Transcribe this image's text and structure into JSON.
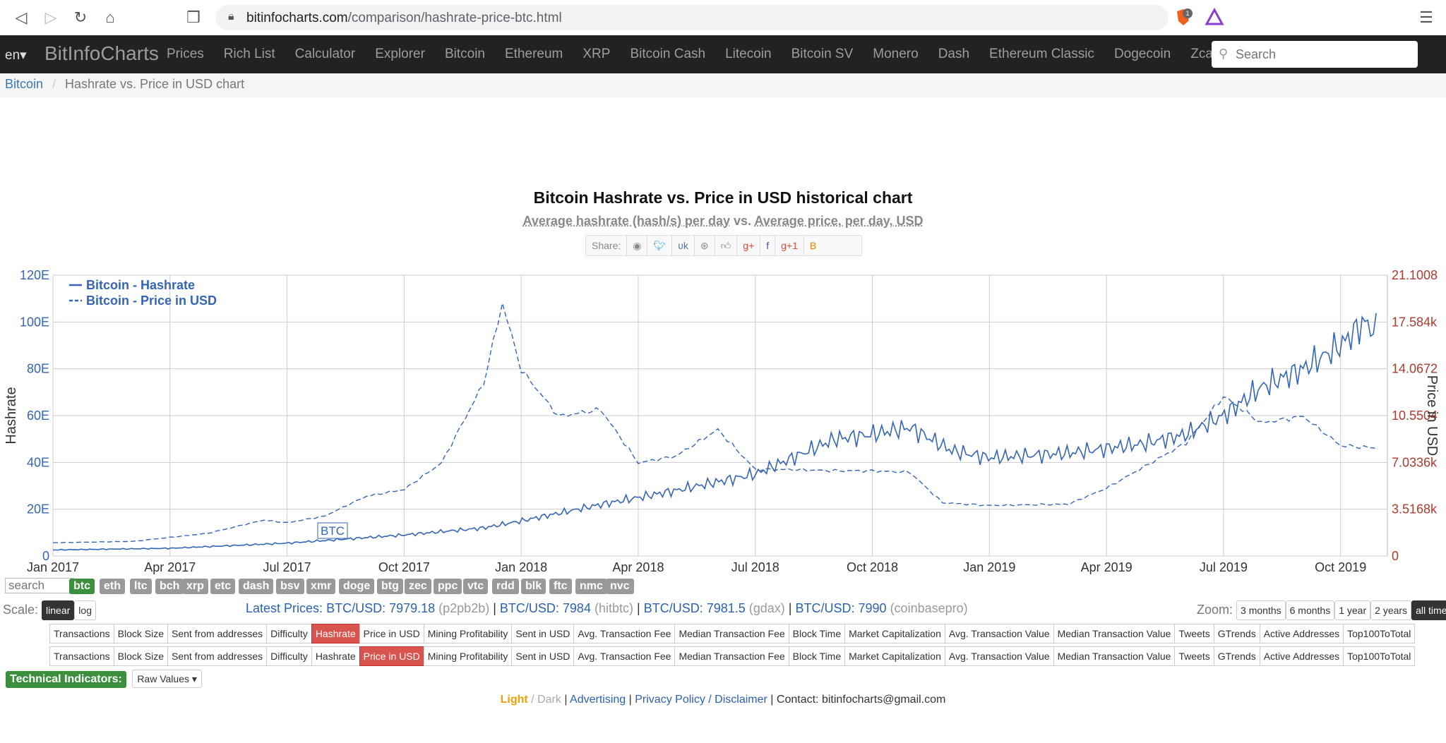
{
  "browser": {
    "url_host": "bitinfocharts.com",
    "url_path": "/comparison/hashrate-price-btc.html",
    "ext_badge": "1"
  },
  "nav": {
    "lang": "en",
    "brand": "BitInfoCharts",
    "links": [
      "Prices",
      "Rich List",
      "Calculator",
      "Explorer",
      "Bitcoin",
      "Ethereum",
      "XRP",
      "Bitcoin Cash",
      "Litecoin",
      "Bitcoin SV",
      "Monero",
      "Dash",
      "Ethereum Classic",
      "Dogecoin",
      "Zcash"
    ],
    "search_placeholder": "Search"
  },
  "breadcrumb": {
    "link": "Bitcoin",
    "separator": "/",
    "current": "Hashrate vs. Price in USD chart"
  },
  "header": {
    "title": "Bitcoin Hashrate vs. Price in USD historical chart",
    "sub_left": "Average hashrate (hash/s) per day",
    "sub_vs": "vs.",
    "sub_right": "Average price, per day, USD",
    "share_label": "Share:"
  },
  "chart_data": {
    "type": "line",
    "title": "Bitcoin Hashrate vs. Price in USD historical chart",
    "x_ticks": [
      "Jan 2017",
      "Apr 2017",
      "Jul 2017",
      "Oct 2017",
      "Jan 2018",
      "Apr 2018",
      "Jul 2018",
      "Oct 2018",
      "Jan 2019",
      "Apr 2019",
      "Jul 2019",
      "Oct 2019"
    ],
    "x_range": [
      2017.0,
      2019.85
    ],
    "ylabel": "Hashrate",
    "y2label": "Price in USD",
    "y_ticks": [
      "0",
      "20E",
      "40E",
      "60E",
      "80E",
      "100E",
      "120E"
    ],
    "y_range": [
      0,
      120
    ],
    "y2_ticks": [
      "0",
      "3.5168k",
      "7.0336k",
      "10.5504",
      "14.0672",
      "17.584k",
      "21.1008"
    ],
    "y2_range": [
      0,
      21100.8
    ],
    "legend": [
      "Bitcoin - Hashrate",
      "Bitcoin - Price in USD"
    ],
    "annotation": "BTC",
    "series": [
      {
        "name": "Bitcoin - Hashrate",
        "axis": "left",
        "points": [
          [
            2017.0,
            2.6
          ],
          [
            2017.25,
            3.3
          ],
          [
            2017.5,
            5.5
          ],
          [
            2017.75,
            9
          ],
          [
            2017.92,
            12
          ],
          [
            2018.0,
            15
          ],
          [
            2018.17,
            22
          ],
          [
            2018.33,
            28
          ],
          [
            2018.5,
            35
          ],
          [
            2018.58,
            42
          ],
          [
            2018.67,
            50
          ],
          [
            2018.75,
            52
          ],
          [
            2018.83,
            55
          ],
          [
            2018.92,
            45
          ],
          [
            2019.0,
            42
          ],
          [
            2019.17,
            44
          ],
          [
            2019.33,
            48
          ],
          [
            2019.42,
            52
          ],
          [
            2019.5,
            60
          ],
          [
            2019.58,
            72
          ],
          [
            2019.67,
            80
          ],
          [
            2019.75,
            90
          ],
          [
            2019.8,
            100
          ],
          [
            2019.83,
            95
          ]
        ]
      },
      {
        "name": "Bitcoin - Price in USD",
        "axis": "right",
        "points": [
          [
            2017.0,
            1000
          ],
          [
            2017.17,
            1100
          ],
          [
            2017.33,
            1700
          ],
          [
            2017.45,
            2700
          ],
          [
            2017.5,
            2500
          ],
          [
            2017.58,
            3000
          ],
          [
            2017.67,
            4500
          ],
          [
            2017.75,
            5000
          ],
          [
            2017.83,
            7000
          ],
          [
            2017.92,
            13000
          ],
          [
            2017.96,
            19000
          ],
          [
            2018.0,
            14000
          ],
          [
            2018.08,
            10500
          ],
          [
            2018.17,
            11000
          ],
          [
            2018.25,
            7000
          ],
          [
            2018.33,
            7500
          ],
          [
            2018.42,
            9500
          ],
          [
            2018.5,
            6500
          ],
          [
            2018.58,
            6500
          ],
          [
            2018.67,
            6400
          ],
          [
            2018.75,
            6400
          ],
          [
            2018.83,
            6300
          ],
          [
            2018.9,
            4000
          ],
          [
            2019.0,
            3800
          ],
          [
            2019.17,
            3900
          ],
          [
            2019.25,
            5100
          ],
          [
            2019.42,
            8500
          ],
          [
            2019.5,
            12000
          ],
          [
            2019.58,
            10000
          ],
          [
            2019.67,
            10500
          ],
          [
            2019.75,
            8300
          ],
          [
            2019.83,
            8100
          ]
        ]
      }
    ]
  },
  "coins": {
    "search_placeholder": "search",
    "items": [
      "btc",
      "eth",
      "ltc",
      "bch",
      "xrp",
      "etc",
      "dash",
      "bsv",
      "xmr",
      "doge",
      "btg",
      "zec",
      "ppc",
      "vtc",
      "rdd",
      "blk",
      "ftc",
      "nmc",
      "nvc"
    ]
  },
  "scale": {
    "label": "Scale:",
    "linear": "linear",
    "log": "log"
  },
  "prices": {
    "label": "Latest Prices:",
    "items": [
      {
        "pair": "BTC/USD: 7979.18",
        "src": "(p2pb2b)"
      },
      {
        "pair": "BTC/USD: 7984",
        "src": "(hitbtc)"
      },
      {
        "pair": "BTC/USD: 7981.5",
        "src": "(gdax)"
      },
      {
        "pair": "BTC/USD: 7990",
        "src": "(coinbasepro)"
      }
    ]
  },
  "zoom": {
    "label": "Zoom:",
    "options": [
      "3 months",
      "6 months",
      "1 year",
      "2 years",
      "all time"
    ]
  },
  "metrics": [
    "Transactions",
    "Block Size",
    "Sent from addresses",
    "Difficulty",
    "Hashrate",
    "Price in USD",
    "Mining Profitability",
    "Sent in USD",
    "Avg. Transaction Fee",
    "Median Transaction Fee",
    "Block Time",
    "Market Capitalization",
    "Avg. Transaction Value",
    "Median Transaction Value",
    "Tweets",
    "GTrends",
    "Active Addresses",
    "Top100ToTotal"
  ],
  "tech": {
    "label": "Technical Indicators:",
    "select": "Raw Values"
  },
  "footer": {
    "light": "Light",
    "slash": "/",
    "dark": "Dark",
    "bar": "|",
    "advertising": "Advertising",
    "privacy": "Privacy Policy / Disclaimer",
    "contact": "Contact: bitinfocharts@gmail.com"
  },
  "colors": {
    "series": "#3465b7",
    "axis_right": "#b03a2e",
    "nav_bg": "#222222",
    "active_metric": "#d9534f",
    "active_coin": "#3c8f3c"
  }
}
